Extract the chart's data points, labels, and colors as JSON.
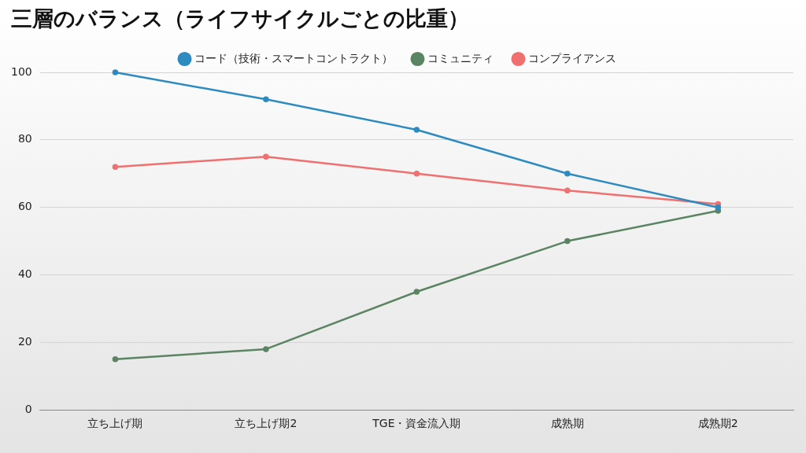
{
  "chart_data": {
    "type": "line",
    "title": "三層のバランス（ライフサイクルごとの比重）",
    "categories": [
      "立ち上げ期",
      "立ち上げ期2",
      "TGE・資金流入期",
      "成熟期",
      "成熟期2"
    ],
    "series": [
      {
        "name": "コード（技術・スマートコントラクト）",
        "color": "#2e8bc0",
        "values": [
          100,
          92,
          83,
          70,
          60
        ]
      },
      {
        "name": "コミュニティ",
        "color": "#5a8462",
        "values": [
          15,
          18,
          35,
          50,
          59
        ]
      },
      {
        "name": "コンプライアンス",
        "color": "#f07070",
        "values": [
          72,
          75,
          70,
          65,
          61
        ]
      }
    ],
    "ylim": [
      0,
      100
    ],
    "yticks": [
      0,
      20,
      40,
      60,
      80,
      100
    ],
    "grid": "y",
    "legend": "top",
    "marker": "circle",
    "line_style": "solid"
  }
}
